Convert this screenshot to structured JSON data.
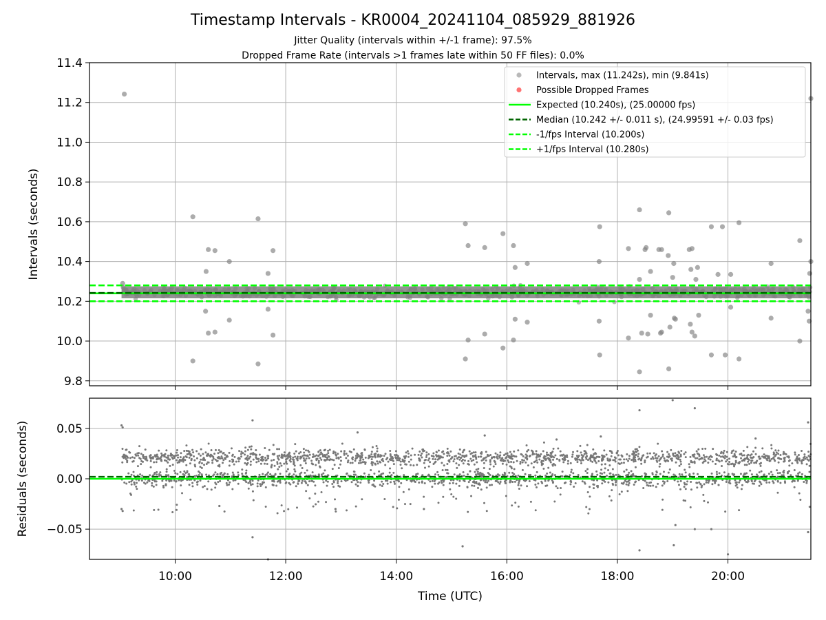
{
  "title": "Timestamp Intervals - KR0004_20241104_085929_881926",
  "subtitle_lines": [
    "Jitter Quality (intervals within +/-1 frame): 97.5%",
    "Dropped Frame Rate (intervals >1 frames late within 50 FF files): 0.0%"
  ],
  "colors": {
    "points": "#808080",
    "dropped": "#ff0000",
    "expected": "#00ff00",
    "median": "#006400",
    "interval_bounds": "#00ff00",
    "grid": "#b0b0b0"
  },
  "chart_data": [
    {
      "type": "scatter",
      "panel": "intervals",
      "title": "Timestamp Intervals - KR0004_20241104_085929_881926",
      "xlabel": "",
      "ylabel": "Intervals (seconds)",
      "x_units": "hours_utc",
      "xlim": [
        8.45,
        21.5
      ],
      "ylim": [
        9.775,
        11.4
      ],
      "yticks": [
        "9.8",
        "10.0",
        "10.2",
        "10.4",
        "10.6",
        "10.8",
        "11.0",
        "11.2",
        "11.4"
      ],
      "ytick_values": [
        9.8,
        10.0,
        10.2,
        10.4,
        10.6,
        10.8,
        11.0,
        11.2,
        11.4
      ],
      "grid": true,
      "legend_position": "top-right",
      "legend": [
        {
          "label": "Intervals, max (11.242s), min (9.841s)",
          "kind": "marker",
          "color": "#808080"
        },
        {
          "label": "Possible Dropped Frames",
          "kind": "marker",
          "color": "#ff0000"
        },
        {
          "label": "Expected (10.240s), (25.00000 fps)",
          "kind": "solid",
          "color": "#00ff00"
        },
        {
          "label": "Median (10.242 +/- 0.011 s), (24.99591 +/- 0.03 fps)",
          "kind": "dashed",
          "color": "#006400"
        },
        {
          "label": "-1/fps Interval (10.200s)",
          "kind": "dashed",
          "color": "#00ff00"
        },
        {
          "label": "+1/fps Interval (10.280s)",
          "kind": "dashed",
          "color": "#00ff00"
        }
      ],
      "reference_lines": [
        {
          "name": "expected",
          "y": 10.24,
          "style": "solid",
          "color": "#00ff00"
        },
        {
          "name": "median",
          "y": 10.242,
          "style": "dashed",
          "color": "#006400"
        },
        {
          "name": "minus_one_fps",
          "y": 10.2,
          "style": "dashed",
          "color": "#00ff00"
        },
        {
          "name": "plus_one_fps",
          "y": 10.28,
          "style": "dashed",
          "color": "#00ff00"
        }
      ],
      "dense_band": {
        "x_start": 9.03,
        "x_end": 21.5,
        "y_low": 10.215,
        "y_high": 10.275
      },
      "outliers": [
        [
          9.08,
          11.242
        ],
        [
          9.05,
          10.29
        ],
        [
          9.06,
          10.27
        ],
        [
          10.32,
          10.625
        ],
        [
          10.32,
          9.9
        ],
        [
          10.55,
          10.15
        ],
        [
          10.56,
          10.35
        ],
        [
          10.6,
          10.46
        ],
        [
          10.6,
          10.04
        ],
        [
          10.72,
          10.455
        ],
        [
          10.72,
          10.045
        ],
        [
          10.98,
          10.4
        ],
        [
          10.98,
          10.105
        ],
        [
          11.5,
          10.615
        ],
        [
          11.5,
          9.885
        ],
        [
          11.68,
          10.34
        ],
        [
          11.68,
          10.16
        ],
        [
          11.77,
          10.455
        ],
        [
          11.77,
          10.03
        ],
        [
          15.25,
          10.59
        ],
        [
          15.25,
          9.91
        ],
        [
          15.3,
          10.48
        ],
        [
          15.3,
          10.005
        ],
        [
          15.6,
          10.47
        ],
        [
          15.6,
          10.035
        ],
        [
          15.93,
          10.54
        ],
        [
          15.93,
          9.965
        ],
        [
          16.12,
          10.48
        ],
        [
          16.12,
          10.005
        ],
        [
          16.15,
          10.37
        ],
        [
          16.15,
          10.11
        ],
        [
          16.37,
          10.39
        ],
        [
          16.37,
          10.095
        ],
        [
          17.68,
          10.575
        ],
        [
          17.68,
          9.93
        ],
        [
          17.67,
          10.4
        ],
        [
          17.67,
          10.1
        ],
        [
          18.2,
          10.465
        ],
        [
          18.2,
          10.015
        ],
        [
          18.4,
          10.66
        ],
        [
          18.4,
          9.845
        ],
        [
          18.4,
          10.31
        ],
        [
          18.44,
          10.04
        ],
        [
          18.5,
          10.46
        ],
        [
          18.52,
          10.47
        ],
        [
          18.55,
          10.035
        ],
        [
          18.6,
          10.35
        ],
        [
          18.6,
          10.13
        ],
        [
          18.75,
          10.46
        ],
        [
          18.8,
          10.46
        ],
        [
          18.78,
          10.04
        ],
        [
          18.8,
          10.045
        ],
        [
          18.93,
          10.645
        ],
        [
          18.93,
          9.86
        ],
        [
          18.92,
          10.43
        ],
        [
          18.95,
          10.07
        ],
        [
          19.0,
          10.32
        ],
        [
          19.02,
          10.39
        ],
        [
          19.03,
          10.115
        ],
        [
          19.05,
          10.11
        ],
        [
          19.3,
          10.46
        ],
        [
          19.32,
          10.085
        ],
        [
          19.33,
          10.36
        ],
        [
          19.35,
          10.465
        ],
        [
          19.35,
          10.045
        ],
        [
          19.4,
          10.025
        ],
        [
          19.42,
          10.31
        ],
        [
          19.45,
          10.37
        ],
        [
          19.47,
          10.13
        ],
        [
          19.7,
          10.575
        ],
        [
          19.7,
          9.93
        ],
        [
          19.82,
          10.335
        ],
        [
          19.9,
          10.575
        ],
        [
          19.95,
          9.93
        ],
        [
          20.05,
          10.335
        ],
        [
          20.05,
          10.17
        ],
        [
          20.2,
          10.595
        ],
        [
          20.2,
          9.91
        ],
        [
          20.78,
          10.39
        ],
        [
          20.78,
          10.115
        ],
        [
          21.3,
          10.505
        ],
        [
          21.3,
          10.0
        ],
        [
          21.45,
          10.15
        ],
        [
          21.47,
          10.1
        ],
        [
          21.48,
          10.34
        ],
        [
          21.5,
          10.4
        ],
        [
          21.5,
          11.22
        ]
      ]
    },
    {
      "type": "scatter",
      "panel": "residuals",
      "xlabel": "Time (UTC)",
      "ylabel": "Residuals (seconds)",
      "x_units": "hours_utc",
      "xlim": [
        8.45,
        21.5
      ],
      "ylim": [
        -0.08,
        0.08
      ],
      "xticks": [
        "10:00",
        "12:00",
        "14:00",
        "16:00",
        "18:00",
        "20:00"
      ],
      "xtick_values": [
        10,
        12,
        14,
        16,
        18,
        20
      ],
      "yticks": [
        "−0.05",
        "0.00",
        "0.05"
      ],
      "ytick_values": [
        -0.05,
        0.0,
        0.05
      ],
      "grid": true,
      "reference_lines": [
        {
          "name": "zero",
          "y": 0.0,
          "style": "solid",
          "color": "#00ff00"
        },
        {
          "name": "median_residual",
          "y": 0.002,
          "style": "dashed",
          "color": "#006400"
        }
      ],
      "dense_band": {
        "x_start": 9.03,
        "x_end": 21.5,
        "upper_center": 0.021,
        "lower_center": 0.0,
        "spread": 0.004
      },
      "outliers": [
        [
          9.03,
          0.053
        ],
        [
          9.05,
          0.051
        ],
        [
          9.03,
          -0.03
        ],
        [
          9.05,
          -0.032
        ],
        [
          11.4,
          0.058
        ],
        [
          11.4,
          -0.058
        ],
        [
          11.68,
          -0.08
        ],
        [
          15.2,
          -0.067
        ],
        [
          18.4,
          0.068
        ],
        [
          18.4,
          -0.071
        ],
        [
          19.0,
          0.078
        ],
        [
          19.02,
          -0.066
        ],
        [
          19.05,
          -0.046
        ],
        [
          19.4,
          0.07
        ],
        [
          19.4,
          -0.05
        ],
        [
          19.7,
          -0.05
        ],
        [
          20.0,
          -0.075
        ],
        [
          21.45,
          0.056
        ],
        [
          21.45,
          -0.053
        ],
        [
          13.3,
          0.046
        ],
        [
          15.6,
          0.043
        ],
        [
          17.7,
          0.042
        ],
        [
          10.8,
          -0.027
        ],
        [
          12.9,
          -0.03
        ],
        [
          14.5,
          -0.03
        ],
        [
          16.9,
          0.039
        ],
        [
          20.5,
          0.04
        ]
      ]
    }
  ]
}
